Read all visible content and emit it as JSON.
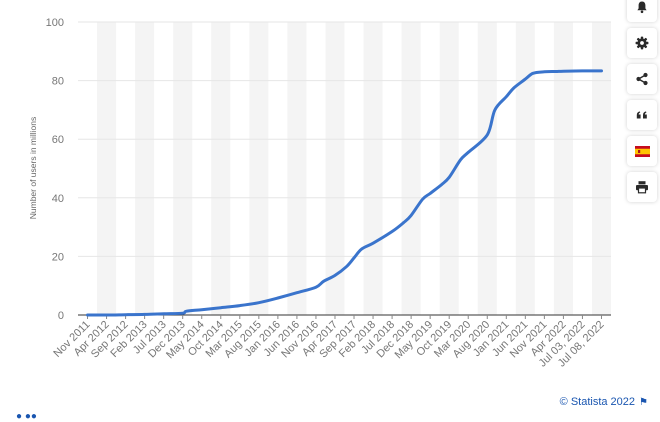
{
  "chart_data": {
    "type": "line",
    "ylabel": "Number of users in millions",
    "ylim": [
      0,
      100
    ],
    "yticks": [
      "0",
      "20",
      "40",
      "60",
      "80",
      "100"
    ],
    "grid": true,
    "line_color": "#3a74cc",
    "band_color": "#f4f4f4",
    "xticks": [
      "Nov 2011",
      "Apr 2012",
      "Sep 2012",
      "Feb 2013",
      "Jul 2013",
      "Dec 2013",
      "May 2014",
      "Oct 2014",
      "Mar 2015",
      "Aug 2015",
      "Jan 2016",
      "Jun 2016",
      "Nov 2016",
      "Apr 2017",
      "Sep 2017",
      "Feb 2018",
      "Jul 2018",
      "Dec 2018",
      "May 2019",
      "Oct 2019",
      "Mar 2020",
      "Aug 2020",
      "Jan 2021",
      "Jun 2021",
      "Nov 2021",
      "Apr 2022",
      "Jul 03, 2022",
      "Jul 08, 2022"
    ],
    "series": [
      {
        "x": [
          "Nov 2011",
          "Apr 2012",
          "Sep 2012",
          "Feb 2013",
          "Jul 2013",
          "Dec 2013",
          "Jan 2014",
          "May 2014",
          "Oct 2014",
          "Mar 2015",
          "Aug 2015",
          "Jan 2016",
          "Jun 2016",
          "Nov 2016",
          "Jan 2017",
          "Apr 2017",
          "Jul 2017",
          "Sep 2017",
          "Nov 2017",
          "Feb 2018",
          "Jul 2018",
          "Oct 2018",
          "Dec 2018",
          "Mar 2019",
          "May 2019",
          "Aug 2019",
          "Oct 2019",
          "Jan 2020",
          "Mar 2020",
          "Aug 2020",
          "Oct 2020",
          "Jan 2021",
          "Mar 2021",
          "Jun 2021",
          "Aug 2021",
          "Nov 2021",
          "Feb 2022",
          "Apr 2022",
          "Jul 03, 2022",
          "Jul 08, 2022"
        ],
        "y": [
          0,
          0,
          0.1,
          0.2,
          0.4,
          0.6,
          1.3,
          1.8,
          2.5,
          3.2,
          4.2,
          5.8,
          7.6,
          9.5,
          11.5,
          13.5,
          16.5,
          19.5,
          22.5,
          24.5,
          28.5,
          31.5,
          34.0,
          39.5,
          41.5,
          44.5,
          47.0,
          53.0,
          55.5,
          61.5,
          70.0,
          74.5,
          77.5,
          80.5,
          82.5,
          83.0,
          83.1,
          83.2,
          83.3,
          83.3
        ]
      }
    ]
  },
  "toolbar": {
    "buttons": [
      {
        "name": "notifications-button",
        "icon": "bell-icon"
      },
      {
        "name": "settings-button",
        "icon": "gear-icon"
      },
      {
        "name": "share-button",
        "icon": "share-icon"
      },
      {
        "name": "cite-button",
        "icon": "quote-icon"
      },
      {
        "name": "language-button",
        "icon": "spanish-flag-icon"
      },
      {
        "name": "print-button",
        "icon": "print-icon"
      }
    ]
  },
  "credit": {
    "text": "© Statista 2022"
  }
}
